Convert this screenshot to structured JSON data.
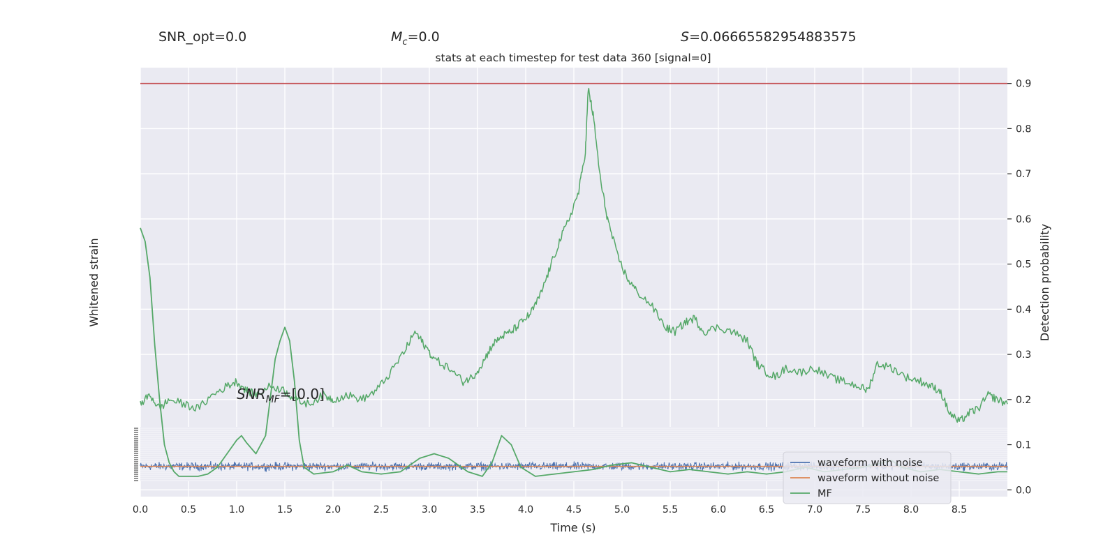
{
  "header": {
    "snr_opt": "SNR_opt=0.0",
    "mc_symbol": "M",
    "mc_sub": "c",
    "mc_value": "=0.0",
    "s_symbol": "S",
    "s_value": "=0.06665582954883575",
    "title": "stats at each timestep for test data 360 [signal=0]"
  },
  "annotation": {
    "snr_mf_symbol": "SNR",
    "snr_mf_sub": "MF",
    "snr_mf_value": "=[0.0]"
  },
  "colors": {
    "axes_bg": "#eaeaf2",
    "grid": "#ffffff",
    "noise": "#4c72b0",
    "clean": "#dd8452",
    "green": "#55a868",
    "threshold": "#c44e52"
  },
  "chart_data": {
    "type": "line",
    "xlabel": "Time (s)",
    "ylabel_left": "Whitened strain",
    "ylabel_right": "Detection probability",
    "xlim": [
      0.0,
      9.0
    ],
    "ylim_right": [
      -0.015,
      0.935
    ],
    "x_ticks": [
      "0.0",
      "0.5",
      "1.0",
      "1.5",
      "2.0",
      "2.5",
      "3.0",
      "3.5",
      "4.0",
      "4.5",
      "5.0",
      "5.5",
      "6.0",
      "6.5",
      "7.0",
      "7.5",
      "8.0",
      "8.5"
    ],
    "y_ticks_right": [
      "0.0",
      "0.1",
      "0.2",
      "0.3",
      "0.4",
      "0.5",
      "0.6",
      "0.7",
      "0.8",
      "0.9"
    ],
    "threshold": 0.9,
    "grid": true,
    "legend_position": "lower-right",
    "legend": [
      "waveform with noise",
      "waveform without noise",
      "MF"
    ],
    "detection_probability": {
      "x": [
        0.0,
        0.1,
        0.2,
        0.3,
        0.45,
        0.6,
        0.75,
        0.9,
        1.0,
        1.1,
        1.2,
        1.35,
        1.5,
        1.6,
        1.75,
        1.9,
        2.0,
        2.15,
        2.3,
        2.45,
        2.6,
        2.75,
        2.85,
        2.95,
        3.05,
        3.2,
        3.35,
        3.45,
        3.55,
        3.65,
        3.75,
        3.85,
        3.95,
        4.05,
        4.15,
        4.25,
        4.35,
        4.45,
        4.55,
        4.62,
        4.65,
        4.7,
        4.78,
        4.85,
        4.95,
        5.05,
        5.15,
        5.3,
        5.45,
        5.55,
        5.65,
        5.75,
        5.85,
        6.0,
        6.15,
        6.3,
        6.4,
        6.5,
        6.6,
        6.7,
        6.85,
        7.0,
        7.15,
        7.3,
        7.45,
        7.55,
        7.65,
        7.8,
        7.95,
        8.1,
        8.2,
        8.3,
        8.4,
        8.5,
        8.6,
        8.7,
        8.8,
        8.9,
        9.0
      ],
      "y": [
        0.19,
        0.21,
        0.18,
        0.2,
        0.19,
        0.18,
        0.21,
        0.23,
        0.24,
        0.22,
        0.21,
        0.23,
        0.22,
        0.2,
        0.19,
        0.21,
        0.2,
        0.21,
        0.2,
        0.22,
        0.26,
        0.31,
        0.35,
        0.32,
        0.29,
        0.27,
        0.24,
        0.25,
        0.28,
        0.32,
        0.34,
        0.35,
        0.37,
        0.39,
        0.43,
        0.49,
        0.55,
        0.6,
        0.66,
        0.75,
        0.89,
        0.83,
        0.68,
        0.6,
        0.52,
        0.47,
        0.44,
        0.41,
        0.36,
        0.35,
        0.37,
        0.38,
        0.35,
        0.36,
        0.35,
        0.33,
        0.28,
        0.26,
        0.25,
        0.27,
        0.26,
        0.27,
        0.25,
        0.24,
        0.23,
        0.22,
        0.28,
        0.27,
        0.25,
        0.24,
        0.23,
        0.22,
        0.17,
        0.15,
        0.17,
        0.18,
        0.21,
        0.2,
        0.19
      ]
    },
    "mf": {
      "x": [
        0.0,
        0.05,
        0.1,
        0.15,
        0.2,
        0.25,
        0.3,
        0.35,
        0.4,
        0.5,
        0.6,
        0.7,
        0.8,
        0.9,
        1.0,
        1.05,
        1.1,
        1.2,
        1.3,
        1.4,
        1.45,
        1.5,
        1.55,
        1.6,
        1.65,
        1.7,
        1.8,
        2.0,
        2.15,
        2.3,
        2.5,
        2.7,
        2.9,
        3.05,
        3.2,
        3.4,
        3.55,
        3.65,
        3.75,
        3.85,
        3.95,
        4.1,
        4.3,
        4.5,
        4.7,
        4.9,
        5.1,
        5.3,
        5.5,
        5.7,
        5.9,
        6.1,
        6.3,
        6.5,
        6.7,
        6.9,
        7.1,
        7.3,
        7.5,
        7.7,
        7.8,
        7.9,
        8.1,
        8.3,
        8.5,
        8.7,
        8.9,
        9.0
      ],
      "y": [
        0.58,
        0.55,
        0.47,
        0.32,
        0.2,
        0.1,
        0.06,
        0.04,
        0.03,
        0.03,
        0.03,
        0.035,
        0.05,
        0.08,
        0.11,
        0.12,
        0.105,
        0.08,
        0.12,
        0.29,
        0.33,
        0.36,
        0.33,
        0.24,
        0.11,
        0.05,
        0.035,
        0.04,
        0.055,
        0.04,
        0.035,
        0.04,
        0.07,
        0.08,
        0.07,
        0.04,
        0.03,
        0.06,
        0.12,
        0.1,
        0.05,
        0.03,
        0.035,
        0.04,
        0.045,
        0.055,
        0.06,
        0.05,
        0.04,
        0.045,
        0.04,
        0.035,
        0.04,
        0.035,
        0.04,
        0.05,
        0.04,
        0.045,
        0.05,
        0.06,
        0.065,
        0.05,
        0.04,
        0.045,
        0.04,
        0.035,
        0.04,
        0.04
      ]
    },
    "waveform_with_noise": {
      "center": 0.052,
      "amplitude": 0.013,
      "samples": 1800
    },
    "waveform_without_noise": {
      "level": 0.052
    }
  }
}
